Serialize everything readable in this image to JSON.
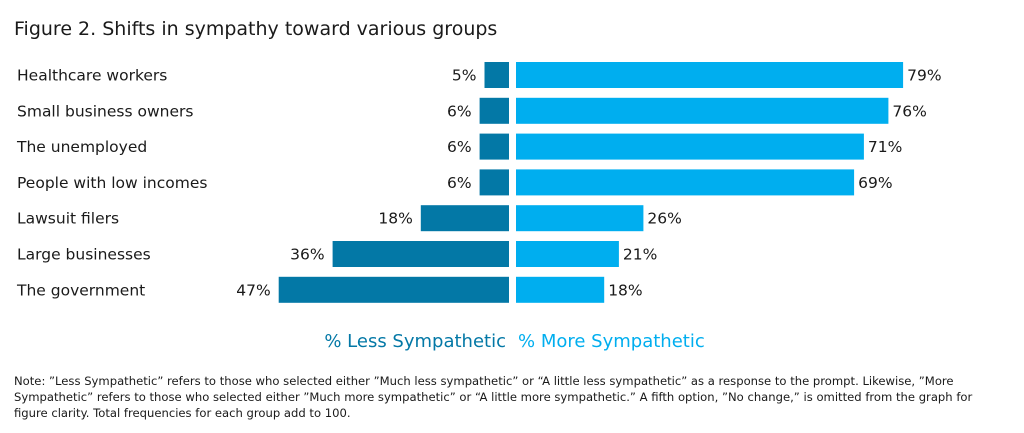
{
  "title": "Figure 2. Shifts in sympathy toward various groups",
  "note": "Note: ”Less Sympathetic” refers to those who selected either ”Much less sympathetic” or “A little less sympathetic” as a response to the prompt. Likewise, ”More Sympathetic” refers to those who selected either ”Much more sympathetic” or “A little more sympathetic.” A fifth option, ”No change,” is omitted from the graph for figure clarity. Total frequencies for each group add to 100.",
  "colors": {
    "less": "#0378a6",
    "more": "#00aeef"
  },
  "chart_data": {
    "type": "bar",
    "orientation": "horizontal-diverging",
    "title": "Figure 2. Shifts in sympathy toward various groups",
    "categories": [
      "Healthcare workers",
      "Small business owners",
      "The unemployed",
      "People with low incomes",
      "Lawsuit filers",
      "Large businesses",
      "The government"
    ],
    "series": [
      {
        "name": "% Less Sympathetic",
        "values": [
          5,
          6,
          6,
          6,
          18,
          36,
          47
        ],
        "labels": [
          "5%",
          "6%",
          "6%",
          "6%",
          "18%",
          "36%",
          "47%"
        ]
      },
      {
        "name": "% More Sympathetic",
        "values": [
          79,
          76,
          71,
          69,
          26,
          21,
          18
        ],
        "labels": [
          "79%",
          "76%",
          "71%",
          "69%",
          "26%",
          "21%",
          "18%"
        ]
      }
    ],
    "legend_position": "bottom-center",
    "grid": false
  }
}
